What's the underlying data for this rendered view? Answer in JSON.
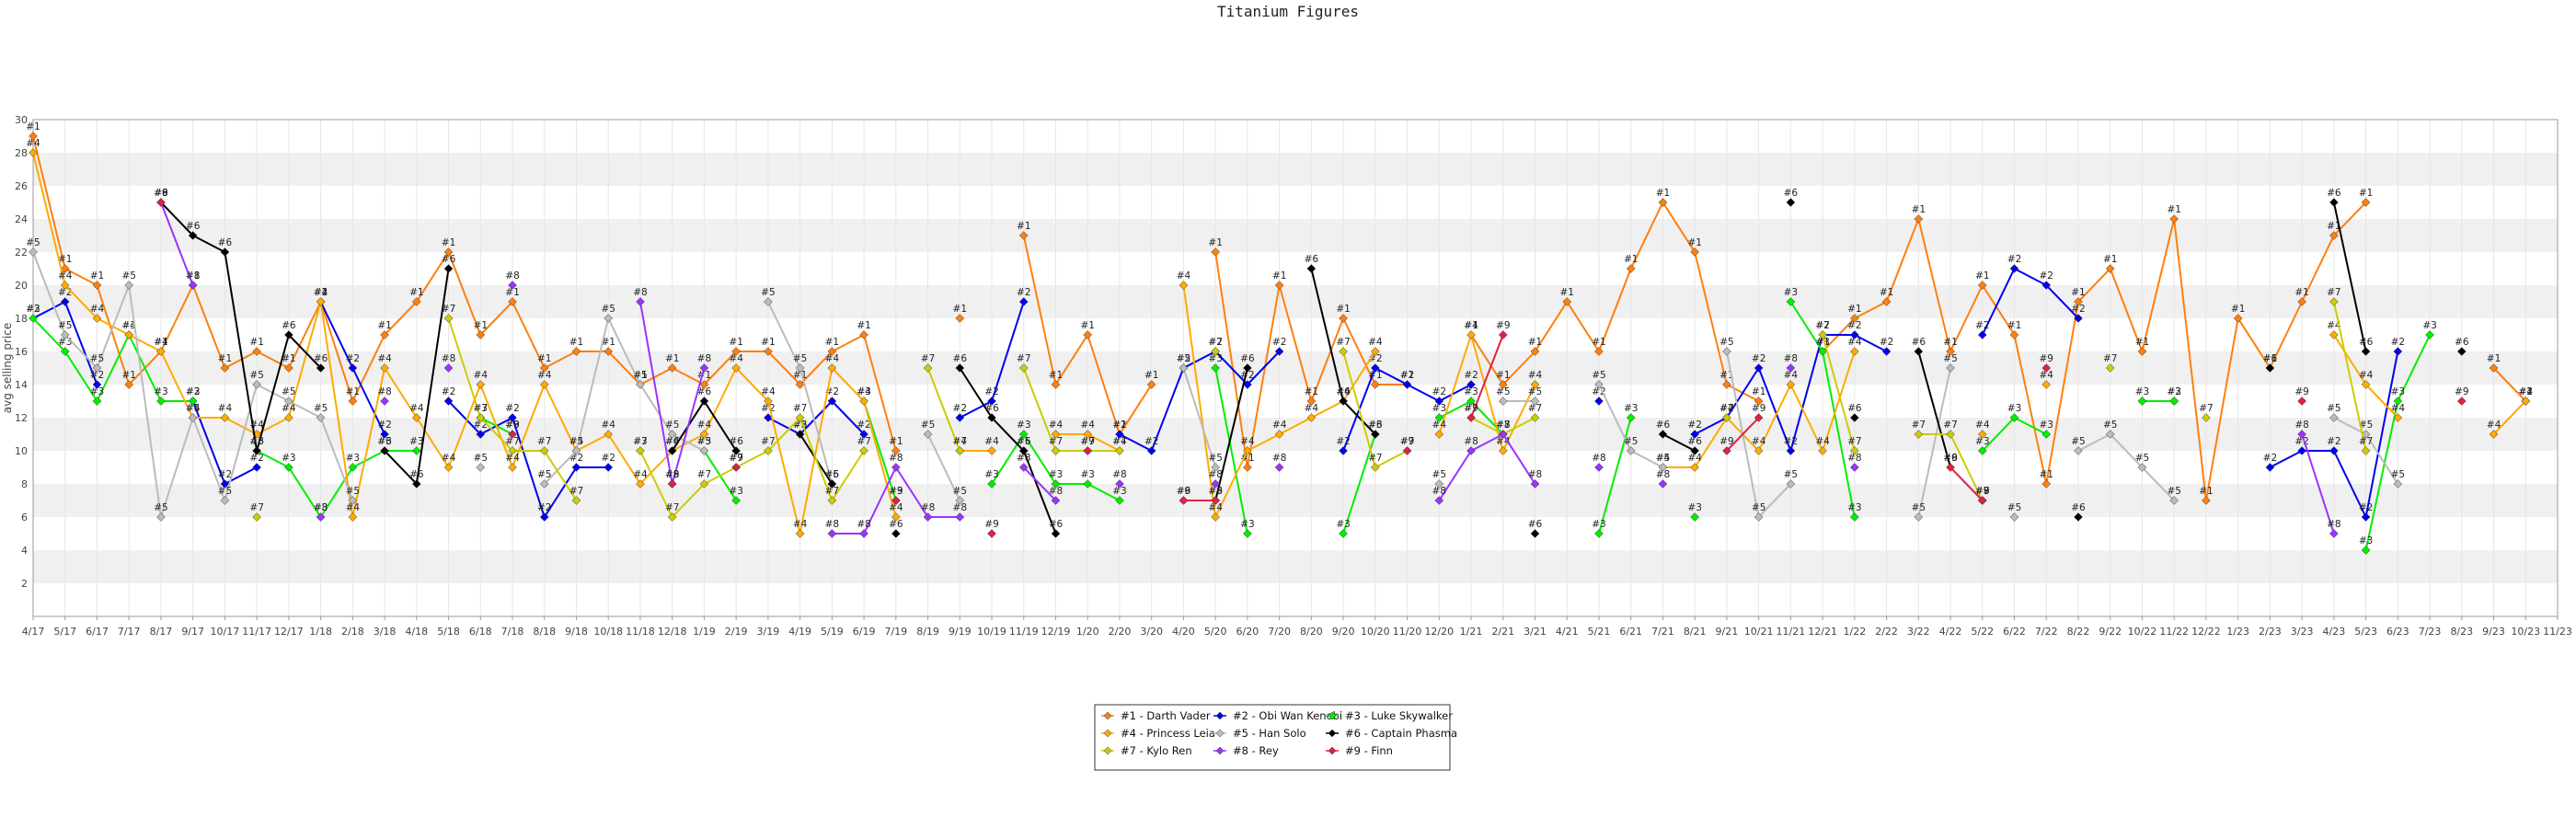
{
  "chart_data": {
    "type": "line",
    "title": "Titanium Figures",
    "xlabel": "",
    "ylabel": "avg selling price",
    "ylim": [
      0,
      30
    ],
    "yticks": [
      2,
      4,
      6,
      8,
      10,
      12,
      14,
      16,
      18,
      20,
      22,
      24,
      26,
      28,
      30
    ],
    "grid": "horizontal alternating bands",
    "legend_position": "bottom-center",
    "x": [
      "4/17",
      "5/17",
      "6/17",
      "7/17",
      "8/17",
      "9/17",
      "10/17",
      "11/17",
      "12/17",
      "1/18",
      "2/18",
      "3/18",
      "4/18",
      "5/18",
      "6/18",
      "7/18",
      "8/18",
      "9/18",
      "10/18",
      "11/18",
      "12/18",
      "1/19",
      "2/19",
      "3/19",
      "4/19",
      "5/19",
      "6/19",
      "7/19",
      "8/19",
      "9/19",
      "10/19",
      "11/19",
      "12/19",
      "1/20",
      "2/20",
      "3/20",
      "4/20",
      "5/20",
      "6/20",
      "7/20",
      "8/20",
      "9/20",
      "10/20",
      "11/20",
      "12/20",
      "1/21",
      "2/21",
      "3/21",
      "4/21",
      "5/21",
      "6/21",
      "7/21",
      "8/21",
      "9/21",
      "10/21",
      "11/21",
      "12/21",
      "1/22",
      "2/22",
      "3/22",
      "4/22",
      "5/22",
      "6/22",
      "7/22",
      "8/22",
      "9/22",
      "10/22",
      "11/22",
      "12/22",
      "1/23",
      "2/23",
      "3/23",
      "4/23",
      "5/23",
      "6/23",
      "7/23",
      "8/23",
      "9/23",
      "10/23",
      "11/23"
    ],
    "series": [
      {
        "name": "#1 - Darth Vader",
        "label": "#1",
        "color": "#ff7f0e",
        "values": [
          29,
          21,
          20,
          14,
          16,
          20,
          15,
          16,
          15,
          19,
          13,
          17,
          19,
          22,
          17,
          19,
          15,
          16,
          16,
          14,
          15,
          14,
          16,
          16,
          14,
          16,
          17,
          10,
          null,
          18,
          null,
          23,
          14,
          17,
          11,
          14,
          null,
          22,
          9,
          20,
          13,
          18,
          14,
          14,
          null,
          17,
          14,
          16,
          19,
          16,
          21,
          25,
          22,
          14,
          13,
          null,
          16,
          18,
          19,
          24,
          16,
          20,
          17,
          8,
          19,
          21,
          16,
          24,
          7,
          18,
          15,
          19,
          23,
          25,
          null,
          null,
          null,
          15,
          13,
          null
        ]
      },
      {
        "name": "#2 - Obi Wan Kenobi",
        "label": "#2",
        "color": "#0000ee",
        "values": [
          18,
          19,
          14,
          null,
          null,
          13,
          8,
          9,
          null,
          19,
          15,
          11,
          null,
          13,
          11,
          12,
          6,
          9,
          9,
          null,
          null,
          null,
          null,
          12,
          11,
          13,
          11,
          null,
          null,
          12,
          13,
          19,
          null,
          null,
          11,
          10,
          15,
          16,
          14,
          16,
          null,
          10,
          15,
          14,
          13,
          14,
          null,
          null,
          null,
          13,
          null,
          null,
          11,
          12,
          15,
          10,
          17,
          17,
          16,
          null,
          null,
          17,
          21,
          20,
          18,
          null,
          null,
          13,
          null,
          null,
          9,
          10,
          10,
          6,
          16,
          null,
          null,
          null,
          13,
          null
        ]
      },
      {
        "name": "#3 - Luke Skywalker",
        "label": "#3",
        "color": "#00ee00",
        "values": [
          18,
          16,
          13,
          17,
          13,
          13,
          null,
          10,
          9,
          6,
          9,
          10,
          10,
          null,
          12,
          11,
          null,
          null,
          null,
          10,
          null,
          10,
          7,
          null,
          null,
          null,
          13,
          7,
          null,
          null,
          8,
          11,
          8,
          8,
          7,
          null,
          null,
          15,
          5,
          null,
          null,
          5,
          11,
          null,
          12,
          13,
          11,
          null,
          null,
          5,
          12,
          null,
          6,
          null,
          null,
          19,
          16,
          6,
          null,
          null,
          null,
          10,
          12,
          11,
          null,
          null,
          13,
          13,
          null,
          null,
          null,
          null,
          null,
          4,
          13,
          17,
          null,
          null,
          null,
          null
        ]
      },
      {
        "name": "#4 - Princess Leia",
        "label": "#4",
        "color": "#ffaa00",
        "values": [
          28,
          20,
          18,
          17,
          16,
          12,
          12,
          11,
          12,
          19,
          6,
          15,
          12,
          9,
          14,
          9,
          14,
          10,
          11,
          8,
          10,
          11,
          15,
          13,
          5,
          15,
          13,
          6,
          null,
          10,
          10,
          null,
          11,
          11,
          10,
          null,
          20,
          6,
          10,
          11,
          12,
          13,
          16,
          null,
          11,
          17,
          10,
          14,
          null,
          null,
          null,
          9,
          9,
          12,
          10,
          14,
          10,
          16,
          null,
          null,
          null,
          11,
          null,
          14,
          null,
          null,
          null,
          null,
          null,
          null,
          null,
          null,
          17,
          14,
          12,
          null,
          null,
          11,
          13,
          null
        ]
      },
      {
        "name": "#5 - Han Solo",
        "label": "#5",
        "color": "#bbbbbb",
        "values": [
          22,
          17,
          15,
          20,
          6,
          12,
          7,
          14,
          13,
          12,
          7,
          null,
          null,
          null,
          9,
          null,
          8,
          10,
          18,
          14,
          11,
          10,
          null,
          19,
          15,
          8,
          null,
          null,
          11,
          7,
          null,
          10,
          null,
          null,
          null,
          null,
          15,
          9,
          null,
          null,
          null,
          null,
          null,
          null,
          8,
          null,
          13,
          13,
          null,
          14,
          10,
          9,
          null,
          16,
          6,
          8,
          null,
          null,
          null,
          6,
          15,
          null,
          6,
          null,
          10,
          11,
          9,
          7,
          null,
          null,
          null,
          null,
          12,
          11,
          8,
          null,
          null,
          null,
          null,
          null
        ]
      },
      {
        "name": "#6 - Captain Phasma",
        "label": "#6",
        "color": "#000000",
        "values": [
          null,
          null,
          null,
          null,
          25,
          23,
          22,
          10,
          17,
          15,
          null,
          10,
          8,
          21,
          null,
          null,
          null,
          null,
          null,
          null,
          10,
          13,
          10,
          null,
          11,
          8,
          null,
          5,
          null,
          15,
          12,
          10,
          5,
          null,
          null,
          null,
          7,
          7,
          15,
          null,
          21,
          13,
          11,
          null,
          null,
          null,
          null,
          5,
          null,
          null,
          null,
          11,
          10,
          null,
          null,
          25,
          null,
          12,
          null,
          16,
          9,
          null,
          null,
          null,
          6,
          null,
          null,
          null,
          null,
          null,
          15,
          null,
          25,
          16,
          null,
          null,
          16,
          null,
          null,
          null
        ]
      },
      {
        "name": "#7 - Kylo Ren",
        "label": "#7",
        "color": "#cccc00",
        "values": [
          null,
          null,
          null,
          null,
          null,
          null,
          null,
          6,
          null,
          null,
          null,
          null,
          null,
          18,
          12,
          10,
          10,
          7,
          null,
          10,
          6,
          8,
          9,
          10,
          12,
          7,
          10,
          null,
          15,
          10,
          null,
          15,
          10,
          10,
          10,
          null,
          null,
          16,
          null,
          null,
          null,
          16,
          9,
          10,
          null,
          12,
          11,
          12,
          null,
          null,
          null,
          null,
          null,
          12,
          null,
          null,
          17,
          10,
          null,
          11,
          11,
          7,
          null,
          null,
          null,
          15,
          null,
          null,
          12,
          null,
          null,
          null,
          19,
          10,
          null,
          null,
          null,
          null,
          null,
          null
        ]
      },
      {
        "name": "#8 - Rey",
        "label": "#8",
        "color": "#9933ff",
        "values": [
          null,
          null,
          null,
          null,
          25,
          20,
          null,
          null,
          null,
          6,
          null,
          13,
          null,
          15,
          null,
          20,
          null,
          null,
          null,
          19,
          8,
          15,
          null,
          null,
          null,
          5,
          5,
          9,
          6,
          6,
          null,
          9,
          7,
          null,
          8,
          null,
          null,
          8,
          null,
          9,
          null,
          null,
          null,
          null,
          7,
          10,
          11,
          8,
          null,
          9,
          null,
          8,
          null,
          null,
          null,
          15,
          null,
          9,
          null,
          null,
          null,
          7,
          null,
          null,
          null,
          null,
          null,
          null,
          null,
          null,
          null,
          11,
          5,
          null,
          null,
          null,
          null,
          null,
          null,
          null
        ]
      },
      {
        "name": "#9 - Finn",
        "label": "#9",
        "color": "#dd2244",
        "values": [
          null,
          null,
          null,
          null,
          25,
          null,
          null,
          null,
          null,
          null,
          null,
          null,
          null,
          null,
          null,
          11,
          null,
          null,
          null,
          null,
          8,
          null,
          9,
          null,
          null,
          null,
          null,
          7,
          null,
          null,
          5,
          null,
          null,
          10,
          null,
          null,
          7,
          7,
          null,
          null,
          null,
          null,
          null,
          10,
          null,
          12,
          17,
          null,
          null,
          null,
          null,
          null,
          null,
          10,
          12,
          null,
          null,
          null,
          null,
          null,
          9,
          7,
          null,
          15,
          null,
          null,
          null,
          null,
          null,
          null,
          null,
          13,
          null,
          null,
          null,
          null,
          13,
          null,
          null,
          null
        ]
      }
    ]
  }
}
